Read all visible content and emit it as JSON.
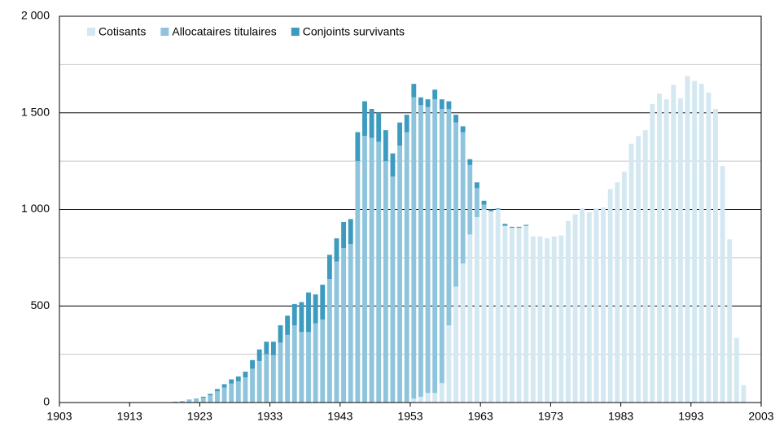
{
  "chart_data": {
    "type": "stacked_bar",
    "x": [
      1919,
      1920,
      1921,
      1922,
      1923,
      1924,
      1925,
      1926,
      1927,
      1928,
      1929,
      1930,
      1931,
      1932,
      1933,
      1934,
      1935,
      1936,
      1937,
      1938,
      1939,
      1940,
      1941,
      1942,
      1943,
      1944,
      1945,
      1946,
      1947,
      1948,
      1949,
      1950,
      1951,
      1952,
      1953,
      1954,
      1955,
      1956,
      1957,
      1958,
      1959,
      1960,
      1961,
      1962,
      1963,
      1964,
      1965,
      1966,
      1967,
      1968,
      1969,
      1970,
      1971,
      1972,
      1973,
      1974,
      1975,
      1976,
      1977,
      1978,
      1979,
      1980,
      1981,
      1982,
      1983,
      1984,
      1985,
      1986,
      1987,
      1988,
      1989,
      1990,
      1991,
      1992,
      1993,
      1994,
      1995,
      1996,
      1997,
      1998,
      1999,
      2000
    ],
    "series": [
      {
        "name": "Cotisants",
        "color": "#d3e8f1",
        "values": [
          0,
          0,
          0,
          0,
          0,
          0,
          0,
          0,
          0,
          0,
          0,
          0,
          0,
          0,
          0,
          0,
          0,
          0,
          0,
          0,
          0,
          0,
          0,
          0,
          0,
          0,
          0,
          0,
          0,
          0,
          0,
          0,
          0,
          0,
          20,
          30,
          50,
          50,
          100,
          400,
          600,
          720,
          870,
          960,
          1000,
          990,
          1000,
          915,
          905,
          905,
          915,
          860,
          860,
          850,
          860,
          865,
          940,
          975,
          1005,
          985,
          1005,
          1010,
          1105,
          1140,
          1195,
          1340,
          1380,
          1410,
          1545,
          1600,
          1570,
          1645,
          1575,
          1690,
          1665,
          1650,
          1605,
          1520,
          1225,
          845,
          335,
          90
        ]
      },
      {
        "name": "Allocataires titulaires",
        "color": "#8ec5dc",
        "values": [
          5,
          8,
          13,
          17,
          25,
          37,
          58,
          78,
          98,
          110,
          130,
          175,
          215,
          250,
          245,
          310,
          350,
          400,
          365,
          365,
          410,
          430,
          640,
          730,
          800,
          820,
          1250,
          1380,
          1370,
          1350,
          1250,
          1170,
          1330,
          1400,
          1560,
          1510,
          1480,
          1520,
          1420,
          1120,
          850,
          680,
          360,
          150,
          25,
          0,
          0,
          0,
          0,
          0,
          0,
          0,
          0,
          0,
          0,
          0,
          0,
          0,
          0,
          0,
          0,
          0,
          0,
          0,
          0,
          0,
          0,
          0,
          0,
          0,
          0,
          0,
          0,
          0,
          0,
          0,
          0,
          0,
          0,
          0,
          0,
          0
        ]
      },
      {
        "name": "Conjoints survivants",
        "color": "#3d9bc0",
        "values": [
          0,
          0,
          2,
          3,
          5,
          8,
          12,
          17,
          22,
          25,
          30,
          45,
          60,
          65,
          70,
          90,
          100,
          110,
          155,
          205,
          150,
          180,
          125,
          120,
          135,
          130,
          150,
          180,
          150,
          150,
          160,
          120,
          120,
          90,
          70,
          40,
          40,
          50,
          50,
          40,
          40,
          30,
          30,
          30,
          20,
          10,
          5,
          10,
          5,
          5,
          5,
          0,
          0,
          0,
          0,
          0,
          0,
          0,
          0,
          0,
          0,
          0,
          0,
          0,
          0,
          0,
          0,
          0,
          0,
          0,
          0,
          0,
          0,
          0,
          0,
          0,
          0,
          0,
          0,
          0,
          0,
          0
        ]
      }
    ],
    "xlim": [
      1903,
      2003
    ],
    "xticks": [
      1903,
      1913,
      1923,
      1933,
      1943,
      1953,
      1963,
      1973,
      1983,
      1993,
      2003
    ],
    "ylim": [
      0,
      2000
    ],
    "yticks": [
      0,
      500,
      {
        "value": 1000,
        "label": "1 000"
      },
      {
        "value": 1500,
        "label": "1 500"
      },
      {
        "value": 2000,
        "label": "2 000"
      }
    ],
    "minor_grid": [
      250,
      750,
      1250,
      1750
    ],
    "grid": true,
    "legend": "top-left"
  }
}
